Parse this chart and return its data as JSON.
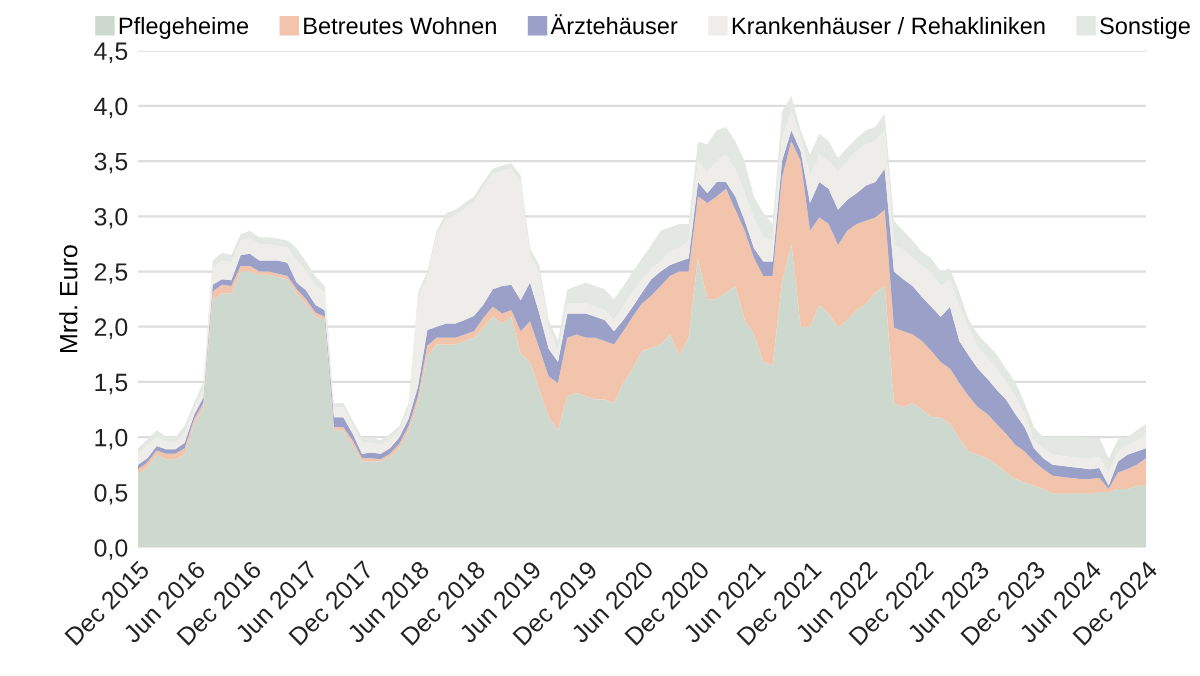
{
  "chart_data": {
    "type": "area",
    "stacked": true,
    "ylabel": "Mrd. Euro",
    "categories": [
      "Dec 2015",
      null,
      null,
      null,
      null,
      null,
      "Jun 2016",
      null,
      null,
      null,
      null,
      null,
      "Dec 2016",
      null,
      null,
      null,
      null,
      null,
      "Jun 2017",
      null,
      null,
      null,
      null,
      null,
      "Dec 2017",
      null,
      null,
      null,
      null,
      null,
      "Jun 2018",
      null,
      null,
      null,
      null,
      null,
      "Dec 2018",
      null,
      null,
      null,
      null,
      null,
      "Jun 2019",
      null,
      null,
      null,
      null,
      null,
      "Dec 2019",
      null,
      null,
      null,
      null,
      null,
      "Jun 2020",
      null,
      null,
      null,
      null,
      null,
      "Dec 2020",
      null,
      null,
      null,
      null,
      null,
      "Jun 2021",
      null,
      null,
      null,
      null,
      null,
      "Dec 2021",
      null,
      null,
      null,
      null,
      null,
      "Jun 2022",
      null,
      null,
      null,
      null,
      null,
      "Dec 2022",
      null,
      null,
      null,
      null,
      null,
      "Jun 2023",
      null,
      null,
      null,
      null,
      null,
      "Dec 2023",
      null,
      null,
      null,
      null,
      null,
      "Jun 2024",
      null,
      null,
      null,
      null,
      null,
      "Dec 2024"
    ],
    "series": [
      {
        "name": "Pflegeheime",
        "color": "#cdd9cf",
        "values": [
          0.67,
          0.72,
          0.84,
          0.8,
          0.8,
          0.84,
          1.12,
          1.27,
          2.25,
          2.3,
          2.3,
          2.5,
          2.5,
          2.47,
          2.47,
          2.45,
          2.43,
          2.3,
          2.21,
          2.09,
          2.06,
          1.06,
          1.06,
          0.93,
          0.78,
          0.78,
          0.78,
          0.82,
          0.9,
          1.06,
          1.31,
          1.74,
          1.84,
          1.84,
          1.84,
          1.87,
          1.9,
          1.99,
          2.09,
          2.03,
          2.09,
          1.75,
          1.68,
          1.43,
          1.18,
          1.06,
          1.37,
          1.4,
          1.37,
          1.34,
          1.34,
          1.31,
          1.49,
          1.62,
          1.78,
          1.81,
          1.84,
          1.93,
          1.74,
          1.9,
          2.62,
          2.25,
          2.25,
          2.31,
          2.37,
          2.06,
          1.93,
          1.68,
          1.65,
          2.4,
          2.75,
          2.0,
          2.0,
          2.2,
          2.12,
          1.99,
          2.06,
          2.15,
          2.21,
          2.31,
          2.37,
          1.31,
          1.27,
          1.31,
          1.25,
          1.18,
          1.18,
          1.12,
          0.99,
          0.87,
          0.84,
          0.81,
          0.75,
          0.68,
          0.62,
          0.59,
          0.56,
          0.53,
          0.49,
          0.49,
          0.49,
          0.49,
          0.49,
          0.5,
          0.5,
          0.53,
          0.53,
          0.56,
          0.56
        ]
      },
      {
        "name": "Betreutes Wohnen",
        "color": "#f2c4ac",
        "values": [
          0.04,
          0.05,
          0.04,
          0.05,
          0.05,
          0.06,
          0.04,
          0.04,
          0.07,
          0.08,
          0.07,
          0.05,
          0.05,
          0.03,
          0.03,
          0.03,
          0.03,
          0.04,
          0.04,
          0.04,
          0.03,
          0.03,
          0.03,
          0.04,
          0.03,
          0.03,
          0.02,
          0.03,
          0.04,
          0.04,
          0.06,
          0.09,
          0.06,
          0.06,
          0.06,
          0.06,
          0.06,
          0.09,
          0.09,
          0.09,
          0.06,
          0.21,
          0.37,
          0.37,
          0.37,
          0.43,
          0.53,
          0.53,
          0.53,
          0.56,
          0.53,
          0.53,
          0.47,
          0.47,
          0.43,
          0.47,
          0.53,
          0.53,
          0.76,
          0.6,
          0.56,
          0.87,
          0.93,
          0.94,
          0.69,
          0.81,
          0.69,
          0.78,
          0.81,
          0.95,
          0.93,
          1.5,
          0.87,
          0.79,
          0.81,
          0.75,
          0.81,
          0.78,
          0.75,
          0.68,
          0.69,
          0.68,
          0.69,
          0.62,
          0.62,
          0.6,
          0.5,
          0.5,
          0.5,
          0.5,
          0.43,
          0.4,
          0.37,
          0.35,
          0.31,
          0.28,
          0.22,
          0.18,
          0.16,
          0.15,
          0.14,
          0.13,
          0.13,
          0.13,
          0.03,
          0.15,
          0.18,
          0.19,
          0.25
        ]
      },
      {
        "name": "Ärztehäuser",
        "color": "#9aa0c8",
        "values": [
          0.04,
          0.04,
          0.04,
          0.04,
          0.04,
          0.05,
          0.04,
          0.05,
          0.06,
          0.05,
          0.05,
          0.1,
          0.11,
          0.1,
          0.1,
          0.12,
          0.12,
          0.06,
          0.08,
          0.07,
          0.06,
          0.09,
          0.09,
          0.06,
          0.04,
          0.05,
          0.05,
          0.05,
          0.06,
          0.07,
          0.09,
          0.14,
          0.1,
          0.13,
          0.13,
          0.13,
          0.14,
          0.12,
          0.16,
          0.25,
          0.23,
          0.28,
          0.35,
          0.32,
          0.25,
          0.19,
          0.22,
          0.19,
          0.22,
          0.19,
          0.19,
          0.12,
          0.1,
          0.09,
          0.1,
          0.15,
          0.13,
          0.1,
          0.09,
          0.12,
          0.13,
          0.09,
          0.13,
          0.06,
          0.12,
          0.09,
          0.09,
          0.13,
          0.13,
          0.15,
          0.1,
          0.09,
          0.25,
          0.32,
          0.32,
          0.32,
          0.28,
          0.28,
          0.32,
          0.32,
          0.37,
          0.51,
          0.47,
          0.44,
          0.4,
          0.4,
          0.41,
          0.56,
          0.38,
          0.37,
          0.35,
          0.32,
          0.31,
          0.31,
          0.28,
          0.22,
          0.12,
          0.1,
          0.1,
          0.1,
          0.1,
          0.1,
          0.09,
          0.09,
          0.03,
          0.1,
          0.13,
          0.12,
          0.09
        ]
      },
      {
        "name": "Krankenhäuser / Rehakliniken",
        "color": "#efedea",
        "values": [
          0.1,
          0.12,
          0.08,
          0.07,
          0.06,
          0.09,
          0.06,
          0.08,
          0.15,
          0.17,
          0.16,
          0.13,
          0.14,
          0.15,
          0.15,
          0.13,
          0.14,
          0.2,
          0.17,
          0.18,
          0.15,
          0.09,
          0.09,
          0.08,
          0.1,
          0.09,
          0.08,
          0.08,
          0.06,
          0.09,
          0.8,
          0.48,
          0.82,
          0.95,
          0.98,
          1.01,
          1.03,
          1.06,
          1.04,
          1.04,
          1.05,
          1.06,
          0.24,
          0.38,
          0.19,
          0.1,
          0.09,
          0.09,
          0.09,
          0.09,
          0.09,
          0.1,
          0.12,
          0.13,
          0.12,
          0.1,
          0.09,
          0.12,
          0.12,
          0.16,
          0.19,
          0.19,
          0.19,
          0.25,
          0.25,
          0.25,
          0.28,
          0.22,
          0.19,
          0.2,
          0.17,
          0.12,
          0.25,
          0.25,
          0.25,
          0.34,
          0.35,
          0.38,
          0.37,
          0.37,
          0.35,
          0.24,
          0.27,
          0.25,
          0.28,
          0.31,
          0.28,
          0.25,
          0.31,
          0.25,
          0.19,
          0.19,
          0.19,
          0.16,
          0.16,
          0.12,
          0.06,
          0.09,
          0.09,
          0.09,
          0.09,
          0.09,
          0.1,
          0.1,
          0.12,
          0.09,
          0.09,
          0.09,
          0.13
        ]
      },
      {
        "name": "Sonstige",
        "color": "#e3e8e3",
        "values": [
          0.05,
          0.05,
          0.06,
          0.05,
          0.05,
          0.06,
          0.05,
          0.06,
          0.07,
          0.07,
          0.07,
          0.06,
          0.07,
          0.06,
          0.06,
          0.07,
          0.06,
          0.11,
          0.09,
          0.08,
          0.07,
          0.04,
          0.04,
          0.04,
          0.05,
          0.05,
          0.04,
          0.05,
          0.04,
          0.05,
          0.05,
          0.05,
          0.05,
          0.05,
          0.05,
          0.05,
          0.05,
          0.05,
          0.05,
          0.05,
          0.05,
          0.07,
          0.07,
          0.06,
          0.07,
          0.09,
          0.13,
          0.16,
          0.19,
          0.19,
          0.19,
          0.19,
          0.19,
          0.19,
          0.19,
          0.21,
          0.28,
          0.22,
          0.22,
          0.15,
          0.18,
          0.25,
          0.28,
          0.25,
          0.25,
          0.29,
          0.19,
          0.22,
          0.15,
          0.25,
          0.14,
          0.07,
          0.19,
          0.19,
          0.18,
          0.13,
          0.12,
          0.12,
          0.13,
          0.13,
          0.15,
          0.22,
          0.17,
          0.16,
          0.13,
          0.13,
          0.13,
          0.1,
          0.13,
          0.07,
          0.12,
          0.12,
          0.13,
          0.12,
          0.13,
          0.1,
          0.13,
          0.1,
          0.16,
          0.17,
          0.18,
          0.19,
          0.18,
          0.18,
          0.13,
          0.11,
          0.07,
          0.1,
          0.09
        ]
      }
    ],
    "ylim": [
      0,
      4.5
    ],
    "yticks": [
      {
        "value": 0,
        "label": "0,0"
      },
      {
        "value": 0.5,
        "label": "0,5"
      },
      {
        "value": 1,
        "label": "1,0"
      },
      {
        "value": 1.5,
        "label": "1,5"
      },
      {
        "value": 2,
        "label": "2,0"
      },
      {
        "value": 2.5,
        "label": "2,5"
      },
      {
        "value": 3,
        "label": "3,0"
      },
      {
        "value": 3.5,
        "label": "3,5"
      },
      {
        "value": 4,
        "label": "4,0"
      },
      {
        "value": 4.5,
        "label": "4,5"
      }
    ],
    "grid": "y",
    "legend": "top"
  }
}
